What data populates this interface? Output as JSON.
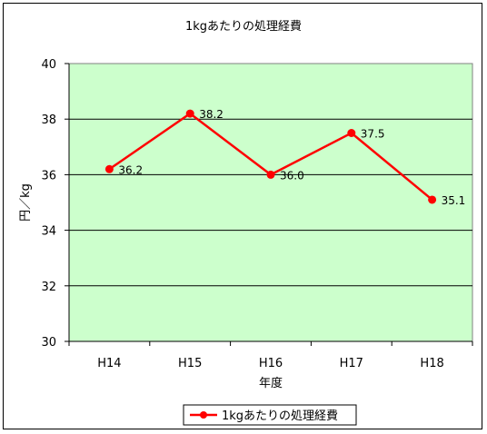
{
  "chart_data": {
    "type": "line",
    "title": "1kgあたりの処理経費",
    "xlabel": "年度",
    "ylabel": "円／kg",
    "categories": [
      "H14",
      "H15",
      "H16",
      "H17",
      "H18"
    ],
    "series": [
      {
        "name": "1kgあたりの処理経費",
        "values": [
          36.2,
          38.2,
          36.0,
          37.5,
          35.1
        ],
        "labels": [
          "36.2",
          "38.2",
          "36.0",
          "37.5",
          "35.1"
        ]
      }
    ],
    "ylim": [
      30,
      40
    ],
    "yticks": [
      30,
      32,
      34,
      36,
      38,
      40
    ],
    "grid": true,
    "legend": "bottom",
    "colors": {
      "series": "#ff0000",
      "plot_bg": "#ccffcc"
    }
  }
}
